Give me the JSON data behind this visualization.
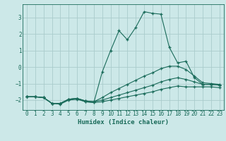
{
  "title": "",
  "xlabel": "Humidex (Indice chaleur)",
  "ylabel": "",
  "bg_color": "#cce8e8",
  "grid_color": "#aacccc",
  "line_color": "#1a6b5a",
  "xlim": [
    -0.5,
    23.5
  ],
  "ylim": [
    -2.6,
    3.8
  ],
  "yticks": [
    -2,
    -1,
    0,
    1,
    2,
    3
  ],
  "xticks": [
    0,
    1,
    2,
    3,
    4,
    5,
    6,
    7,
    8,
    9,
    10,
    11,
    12,
    13,
    14,
    15,
    16,
    17,
    18,
    19,
    20,
    21,
    22,
    23
  ],
  "series": [
    {
      "x": [
        0,
        1,
        2,
        3,
        4,
        5,
        6,
        7,
        8,
        9,
        10,
        11,
        12,
        13,
        14,
        15,
        16,
        17,
        18,
        19,
        20,
        21,
        22,
        23
      ],
      "y": [
        -1.8,
        -1.8,
        -1.85,
        -2.2,
        -2.2,
        -1.95,
        -1.9,
        -2.1,
        -2.15,
        -0.3,
        1.0,
        2.2,
        1.65,
        2.4,
        3.35,
        3.25,
        3.2,
        1.2,
        0.25,
        0.35,
        -0.65,
        -1.05,
        -1.05,
        -1.1
      ]
    },
    {
      "x": [
        0,
        1,
        2,
        3,
        4,
        5,
        6,
        7,
        8,
        9,
        10,
        11,
        12,
        13,
        14,
        15,
        16,
        17,
        18,
        19,
        20,
        21,
        22,
        23
      ],
      "y": [
        -1.8,
        -1.8,
        -1.85,
        -2.2,
        -2.2,
        -1.95,
        -1.9,
        -2.05,
        -2.1,
        -1.85,
        -1.55,
        -1.3,
        -1.05,
        -0.8,
        -0.55,
        -0.35,
        -0.1,
        0.05,
        0.05,
        -0.15,
        -0.55,
        -0.95,
        -1.0,
        -1.05
      ]
    },
    {
      "x": [
        0,
        1,
        2,
        3,
        4,
        5,
        6,
        7,
        8,
        9,
        10,
        11,
        12,
        13,
        14,
        15,
        16,
        17,
        18,
        19,
        20,
        21,
        22,
        23
      ],
      "y": [
        -1.8,
        -1.8,
        -1.85,
        -2.2,
        -2.2,
        -1.95,
        -1.9,
        -2.05,
        -2.1,
        -2.0,
        -1.85,
        -1.7,
        -1.55,
        -1.4,
        -1.25,
        -1.1,
        -0.9,
        -0.75,
        -0.65,
        -0.75,
        -0.9,
        -1.05,
        -1.05,
        -1.1
      ]
    },
    {
      "x": [
        0,
        1,
        2,
        3,
        4,
        5,
        6,
        7,
        8,
        9,
        10,
        11,
        12,
        13,
        14,
        15,
        16,
        17,
        18,
        19,
        20,
        21,
        22,
        23
      ],
      "y": [
        -1.8,
        -1.8,
        -1.85,
        -2.2,
        -2.25,
        -2.0,
        -1.95,
        -2.1,
        -2.15,
        -2.1,
        -2.0,
        -1.9,
        -1.8,
        -1.7,
        -1.6,
        -1.5,
        -1.35,
        -1.25,
        -1.15,
        -1.2,
        -1.2,
        -1.2,
        -1.2,
        -1.25
      ]
    }
  ]
}
